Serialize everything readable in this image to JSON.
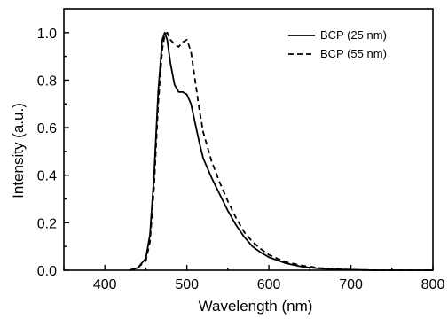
{
  "chart_data": {
    "type": "line",
    "title": "",
    "xlabel": "Wavelength (nm)",
    "ylabel": "Intensity (a.u.)",
    "xlim": [
      350,
      800
    ],
    "ylim": [
      0.0,
      1.1
    ],
    "xticks": [
      400,
      500,
      600,
      700,
      800
    ],
    "yticks": [
      0.0,
      0.2,
      0.4,
      0.6,
      0.8,
      1.0
    ],
    "xtick_labels": [
      "400",
      "500",
      "600",
      "700",
      "800"
    ],
    "ytick_labels": [
      "0.0",
      "0.2",
      "0.4",
      "0.6",
      "0.8",
      "1.0"
    ],
    "grid": false,
    "legend_position": "top-right",
    "series": [
      {
        "name": "BCP (25 nm)",
        "style": "solid",
        "color": "#000000",
        "x": [
          430,
          440,
          450,
          455,
          460,
          465,
          470,
          473,
          476,
          480,
          485,
          490,
          495,
          500,
          505,
          510,
          515,
          520,
          530,
          540,
          550,
          560,
          570,
          580,
          590,
          600,
          620,
          640,
          660,
          680,
          700,
          730,
          760,
          800
        ],
        "y": [
          0.0,
          0.01,
          0.05,
          0.15,
          0.4,
          0.75,
          0.97,
          1.0,
          0.97,
          0.87,
          0.78,
          0.75,
          0.75,
          0.74,
          0.7,
          0.62,
          0.54,
          0.47,
          0.39,
          0.32,
          0.25,
          0.19,
          0.14,
          0.1,
          0.075,
          0.055,
          0.03,
          0.015,
          0.008,
          0.004,
          0.002,
          0.0,
          0.0,
          0.0
        ]
      },
      {
        "name": "BCP (55 nm)",
        "style": "dashed",
        "color": "#000000",
        "x": [
          430,
          440,
          450,
          455,
          460,
          465,
          470,
          473,
          476,
          480,
          485,
          490,
          495,
          500,
          505,
          510,
          515,
          520,
          530,
          540,
          550,
          560,
          570,
          580,
          590,
          600,
          620,
          640,
          660,
          680,
          700,
          730,
          760,
          800
        ],
        "y": [
          0.0,
          0.01,
          0.04,
          0.12,
          0.35,
          0.7,
          0.93,
          0.99,
          1.0,
          0.97,
          0.95,
          0.94,
          0.96,
          0.97,
          0.92,
          0.8,
          0.68,
          0.58,
          0.46,
          0.37,
          0.29,
          0.22,
          0.16,
          0.12,
          0.09,
          0.065,
          0.035,
          0.02,
          0.01,
          0.005,
          0.002,
          0.0,
          0.0,
          0.0
        ]
      }
    ]
  }
}
